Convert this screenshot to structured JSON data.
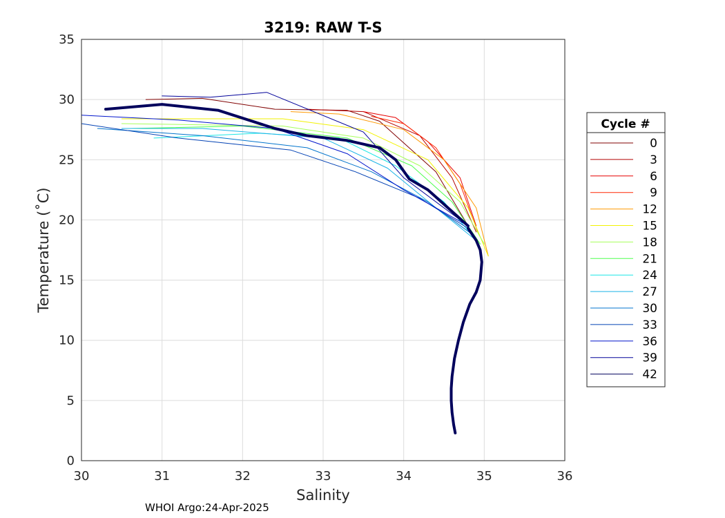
{
  "chart_data": {
    "type": "line",
    "title": "3219: RAW T-S",
    "xlabel": "Salinity",
    "ylabel": "Temperature (˚C)",
    "xlim": [
      30,
      36
    ],
    "ylim": [
      0,
      35
    ],
    "xticks": [
      "30",
      "31",
      "32",
      "33",
      "34",
      "35",
      "36"
    ],
    "yticks": [
      "0",
      "5",
      "10",
      "15",
      "20",
      "25",
      "30",
      "35"
    ],
    "grid": true,
    "legend_title": "Cycle #",
    "legend_position": "right",
    "legend": [
      {
        "label": "0",
        "color": "#800000"
      },
      {
        "label": "3",
        "color": "#b30000"
      },
      {
        "label": "6",
        "color": "#e60000"
      },
      {
        "label": "9",
        "color": "#ff2600"
      },
      {
        "label": "12",
        "color": "#ff9900"
      },
      {
        "label": "15",
        "color": "#f2f200"
      },
      {
        "label": "18",
        "color": "#a6ff59"
      },
      {
        "label": "21",
        "color": "#4dff4d"
      },
      {
        "label": "24",
        "color": "#1ae6e6"
      },
      {
        "label": "27",
        "color": "#1ab3e6"
      },
      {
        "label": "30",
        "color": "#0073cc"
      },
      {
        "label": "33",
        "color": "#0040b3"
      },
      {
        "label": "36",
        "color": "#0014cc"
      },
      {
        "label": "39",
        "color": "#000099"
      },
      {
        "label": "42",
        "color": "#00005c"
      }
    ],
    "deep_profile": [
      [
        34.64,
        2.3
      ],
      [
        34.62,
        3.0
      ],
      [
        34.6,
        4.0
      ],
      [
        34.59,
        5.0
      ],
      [
        34.59,
        6.0
      ],
      [
        34.6,
        7.0
      ],
      [
        34.63,
        8.5
      ],
      [
        34.68,
        10.0
      ],
      [
        34.74,
        11.5
      ],
      [
        34.82,
        13.0
      ],
      [
        34.9,
        14.0
      ],
      [
        34.95,
        15.0
      ],
      [
        34.97,
        16.5
      ],
      [
        34.95,
        17.5
      ],
      [
        34.9,
        18.3
      ],
      [
        34.8,
        19.3
      ]
    ],
    "upper_profiles": [
      {
        "color": "#800000",
        "points": [
          [
            34.8,
            19.5
          ],
          [
            34.4,
            24.0
          ],
          [
            33.7,
            28.2
          ],
          [
            33.3,
            29.1
          ],
          [
            32.4,
            29.2
          ],
          [
            31.5,
            30.1
          ],
          [
            30.8,
            30.0
          ]
        ]
      },
      {
        "color": "#b30000",
        "points": [
          [
            34.9,
            19.0
          ],
          [
            34.6,
            23.5
          ],
          [
            34.2,
            27.0
          ],
          [
            33.5,
            29.0
          ],
          [
            32.8,
            29.2
          ]
        ]
      },
      {
        "color": "#e60000",
        "points": [
          [
            34.9,
            19.5
          ],
          [
            34.7,
            23.5
          ],
          [
            34.3,
            26.5
          ],
          [
            33.9,
            28.5
          ],
          [
            33.5,
            29.0
          ]
        ]
      },
      {
        "color": "#ff2600",
        "points": [
          [
            34.92,
            19.0
          ],
          [
            34.7,
            23.0
          ],
          [
            34.4,
            26.0
          ],
          [
            34.0,
            28.0
          ],
          [
            33.6,
            28.6
          ]
        ]
      },
      {
        "color": "#ff9900",
        "points": [
          [
            35.05,
            17.0
          ],
          [
            34.9,
            21.0
          ],
          [
            34.5,
            25.0
          ],
          [
            34.0,
            27.5
          ],
          [
            33.2,
            28.8
          ],
          [
            32.6,
            29.0
          ]
        ]
      },
      {
        "color": "#f2f200",
        "points": [
          [
            35.05,
            17.0
          ],
          [
            34.8,
            21.0
          ],
          [
            34.3,
            25.0
          ],
          [
            33.5,
            27.5
          ],
          [
            32.5,
            28.4
          ],
          [
            30.5,
            28.4
          ]
        ]
      },
      {
        "color": "#a6ff59",
        "points": [
          [
            35.0,
            18.0
          ],
          [
            34.7,
            21.5
          ],
          [
            34.2,
            24.5
          ],
          [
            33.5,
            26.8
          ],
          [
            32.5,
            27.8
          ],
          [
            30.5,
            28.0
          ]
        ]
      },
      {
        "color": "#4dff4d",
        "points": [
          [
            34.95,
            18.0
          ],
          [
            34.6,
            21.5
          ],
          [
            34.1,
            24.5
          ],
          [
            33.3,
            26.8
          ],
          [
            32.0,
            27.8
          ],
          [
            30.6,
            27.6
          ]
        ]
      },
      {
        "color": "#1ae6e6",
        "points": [
          [
            34.9,
            18.3
          ],
          [
            34.5,
            21.5
          ],
          [
            33.9,
            24.5
          ],
          [
            33.2,
            26.8
          ],
          [
            32.2,
            27.2
          ],
          [
            30.9,
            26.8
          ]
        ]
      },
      {
        "color": "#1ab3e6",
        "points": [
          [
            34.9,
            18.3
          ],
          [
            34.4,
            21.0
          ],
          [
            33.8,
            24.3
          ],
          [
            33.0,
            26.8
          ],
          [
            31.5,
            27.6
          ],
          [
            30.5,
            27.6
          ]
        ]
      },
      {
        "color": "#0073cc",
        "points": [
          [
            34.85,
            18.8
          ],
          [
            34.3,
            21.5
          ],
          [
            33.6,
            24.0
          ],
          [
            32.8,
            26.0
          ],
          [
            31.5,
            27.0
          ],
          [
            30.2,
            27.6
          ]
        ]
      },
      {
        "color": "#0040b3",
        "points": [
          [
            34.8,
            19.3
          ],
          [
            34.2,
            21.8
          ],
          [
            33.4,
            24.0
          ],
          [
            32.6,
            25.8
          ],
          [
            31.2,
            26.8
          ],
          [
            30.0,
            28.0
          ]
        ]
      },
      {
        "color": "#0014cc",
        "points": [
          [
            34.8,
            19.5
          ],
          [
            34.0,
            22.5
          ],
          [
            33.3,
            25.5
          ],
          [
            32.4,
            27.6
          ],
          [
            31.2,
            28.3
          ],
          [
            30.0,
            28.7
          ]
        ]
      },
      {
        "color": "#000099",
        "points": [
          [
            34.8,
            19.5
          ],
          [
            34.0,
            23.5
          ],
          [
            33.5,
            27.3
          ],
          [
            32.3,
            30.6
          ],
          [
            31.6,
            30.2
          ],
          [
            31.0,
            30.3
          ]
        ]
      },
      {
        "color": "#00005c",
        "points": [
          [
            34.8,
            19.5
          ],
          [
            34.3,
            22.5
          ],
          [
            34.07,
            23.4
          ],
          [
            33.9,
            25.0
          ],
          [
            33.7,
            26.0
          ],
          [
            33.3,
            26.6
          ],
          [
            32.8,
            27.0
          ],
          [
            32.4,
            27.6
          ],
          [
            31.7,
            29.1
          ],
          [
            31.0,
            29.6
          ],
          [
            30.3,
            29.2
          ]
        ]
      }
    ]
  },
  "footer": "WHOI Argo:24-Apr-2025"
}
